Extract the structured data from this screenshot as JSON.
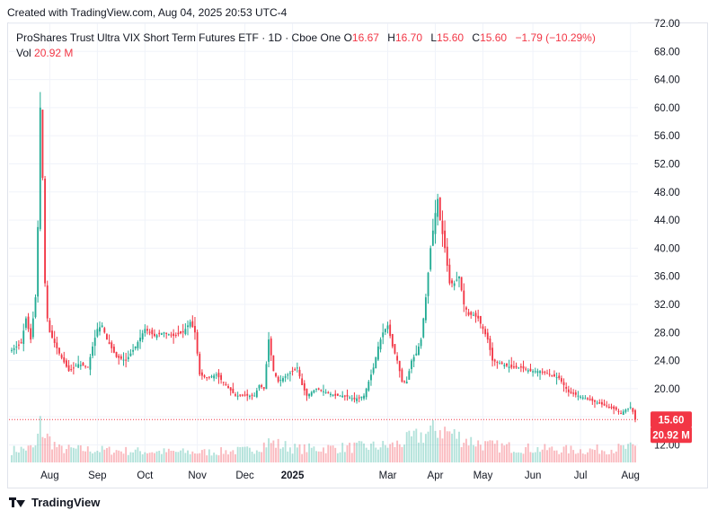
{
  "header": {
    "created": "Created with TradingView.com, Aug 04, 2025 20:53 UTC-4"
  },
  "legend": {
    "symbol": "ProShares Trust Ultra VIX Short Term Futures ETF · 1D · Cboe One",
    "o_label": "O",
    "o": "16.67",
    "h_label": "H",
    "h": "16.70",
    "l_label": "L",
    "l": "15.60",
    "c_label": "C",
    "c": "15.60",
    "change": "−1.79 (−10.29%)",
    "vol_label": "Vol",
    "vol": "20.92 M"
  },
  "footer": {
    "brand": "TradingView"
  },
  "colors": {
    "up": "#22ab94",
    "down": "#f23645",
    "grid": "#f0f3fa",
    "text": "#131722"
  },
  "chart_data": {
    "type": "candlestick",
    "last_price": 15.6,
    "last_price_label": "15.60",
    "last_volume_label": "20.92 M",
    "y_ticks": [
      12,
      16,
      20,
      24,
      28,
      32,
      36,
      40,
      44,
      48,
      52,
      56,
      60,
      64,
      68,
      72
    ],
    "y_tick_labels": [
      "12.00",
      "16.00",
      "20.00",
      "24.00",
      "28.00",
      "32.00",
      "36.00",
      "40.00",
      "44.00",
      "48.00",
      "52.00",
      "56.00",
      "60.00",
      "64.00",
      "68.00",
      "72.00"
    ],
    "ylim": [
      9.5,
      72
    ],
    "x_labels": [
      {
        "label": "Aug",
        "idx": 16
      },
      {
        "label": "Sep",
        "idx": 36
      },
      {
        "label": "Oct",
        "idx": 56
      },
      {
        "label": "Nov",
        "idx": 78
      },
      {
        "label": "Dec",
        "idx": 98
      },
      {
        "label": "2025",
        "idx": 118
      },
      {
        "label": "Mar",
        "idx": 158
      },
      {
        "label": "Apr",
        "idx": 178
      },
      {
        "label": "May",
        "idx": 198
      },
      {
        "label": "Jun",
        "idx": 219
      },
      {
        "label": "Jul",
        "idx": 239
      },
      {
        "label": "Aug",
        "idx": 260
      }
    ],
    "x_range": [
      0,
      262
    ],
    "anchors": [
      [
        0,
        25.5
      ],
      [
        4,
        26.5
      ],
      [
        6,
        30
      ],
      [
        8,
        27
      ],
      [
        10,
        33
      ],
      [
        11,
        43
      ],
      [
        12,
        60
      ],
      [
        13,
        50
      ],
      [
        14,
        35
      ],
      [
        15,
        30
      ],
      [
        16,
        28
      ],
      [
        20,
        25
      ],
      [
        24,
        22.5
      ],
      [
        28,
        23.5
      ],
      [
        32,
        23
      ],
      [
        34,
        26
      ],
      [
        36,
        28.5
      ],
      [
        38,
        29
      ],
      [
        40,
        27
      ],
      [
        44,
        24.5
      ],
      [
        48,
        24
      ],
      [
        52,
        26
      ],
      [
        56,
        28.5
      ],
      [
        60,
        27.5
      ],
      [
        64,
        28
      ],
      [
        68,
        27.5
      ],
      [
        72,
        28
      ],
      [
        75,
        29.5
      ],
      [
        77,
        28
      ],
      [
        79,
        22
      ],
      [
        82,
        21.5
      ],
      [
        86,
        22
      ],
      [
        90,
        20.5
      ],
      [
        94,
        19
      ],
      [
        98,
        19
      ],
      [
        102,
        19
      ],
      [
        104,
        20.5
      ],
      [
        106,
        20
      ],
      [
        108,
        27
      ],
      [
        110,
        22.5
      ],
      [
        112,
        21
      ],
      [
        116,
        22
      ],
      [
        120,
        23
      ],
      [
        122,
        20.5
      ],
      [
        124,
        19
      ],
      [
        128,
        20
      ],
      [
        132,
        19.5
      ],
      [
        136,
        19
      ],
      [
        140,
        19
      ],
      [
        144,
        18.5
      ],
      [
        148,
        19
      ],
      [
        150,
        21
      ],
      [
        152,
        23
      ],
      [
        154,
        26
      ],
      [
        156,
        28
      ],
      [
        158,
        29
      ],
      [
        160,
        26
      ],
      [
        162,
        24
      ],
      [
        164,
        21
      ],
      [
        166,
        21
      ],
      [
        168,
        24
      ],
      [
        170,
        25
      ],
      [
        172,
        27
      ],
      [
        174,
        33
      ],
      [
        176,
        40
      ],
      [
        178,
        45
      ],
      [
        179,
        47
      ],
      [
        180,
        44
      ],
      [
        182,
        40
      ],
      [
        184,
        35
      ],
      [
        186,
        35
      ],
      [
        188,
        36
      ],
      [
        190,
        32
      ],
      [
        192,
        30.5
      ],
      [
        194,
        30.5
      ],
      [
        196,
        30
      ],
      [
        198,
        28.5
      ],
      [
        200,
        27
      ],
      [
        202,
        24
      ],
      [
        206,
        23.5
      ],
      [
        210,
        23
      ],
      [
        214,
        23
      ],
      [
        218,
        22.5
      ],
      [
        222,
        22.5
      ],
      [
        226,
        22
      ],
      [
        230,
        21.5
      ],
      [
        234,
        19.5
      ],
      [
        238,
        19
      ],
      [
        242,
        18.5
      ],
      [
        246,
        18
      ],
      [
        250,
        17.5
      ],
      [
        254,
        17
      ],
      [
        256,
        16.5
      ],
      [
        258,
        17
      ],
      [
        260,
        17.4
      ],
      [
        261,
        16.7
      ],
      [
        262,
        15.6
      ]
    ],
    "vol_anchors": [
      [
        0,
        0.18
      ],
      [
        10,
        0.22
      ],
      [
        12,
        0.55
      ],
      [
        14,
        0.4
      ],
      [
        20,
        0.2
      ],
      [
        40,
        0.18
      ],
      [
        60,
        0.16
      ],
      [
        80,
        0.15
      ],
      [
        100,
        0.18
      ],
      [
        108,
        0.3
      ],
      [
        120,
        0.2
      ],
      [
        140,
        0.22
      ],
      [
        160,
        0.25
      ],
      [
        176,
        0.45
      ],
      [
        180,
        0.5
      ],
      [
        190,
        0.35
      ],
      [
        200,
        0.25
      ],
      [
        220,
        0.2
      ],
      [
        240,
        0.18
      ],
      [
        262,
        0.22
      ]
    ]
  }
}
